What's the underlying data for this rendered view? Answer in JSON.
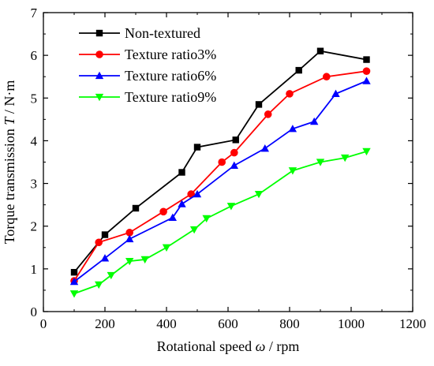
{
  "chart_data": {
    "type": "line",
    "title": "",
    "xlabel_parts": [
      "Rotational speed ",
      "ω",
      " / rpm"
    ],
    "ylabel_parts": [
      "Torque transmission ",
      "T",
      " / N·m"
    ],
    "xlim": [
      0,
      1200
    ],
    "ylim": [
      0,
      7
    ],
    "x_ticks": [
      0,
      200,
      400,
      600,
      800,
      1000,
      1200
    ],
    "y_ticks": [
      0,
      1,
      2,
      3,
      4,
      5,
      6,
      7
    ],
    "grid": false,
    "legend_position": "top-left",
    "series": [
      {
        "name": "Non-textured",
        "color": "#000000",
        "marker": "square",
        "points": [
          [
            100,
            0.92
          ],
          [
            200,
            1.8
          ],
          [
            300,
            2.42
          ],
          [
            450,
            3.26
          ],
          [
            500,
            3.85
          ],
          [
            625,
            4.02
          ],
          [
            700,
            4.85
          ],
          [
            830,
            5.65
          ],
          [
            900,
            6.1
          ],
          [
            1050,
            5.9
          ]
        ]
      },
      {
        "name": "Texture ratio3%",
        "color": "#ff0000",
        "marker": "circle",
        "points": [
          [
            100,
            0.72
          ],
          [
            180,
            1.62
          ],
          [
            280,
            1.85
          ],
          [
            390,
            2.34
          ],
          [
            480,
            2.75
          ],
          [
            580,
            3.5
          ],
          [
            620,
            3.72
          ],
          [
            730,
            4.62
          ],
          [
            800,
            5.1
          ],
          [
            920,
            5.5
          ],
          [
            1050,
            5.63
          ]
        ]
      },
      {
        "name": "Texture ratio6%",
        "color": "#0000ff",
        "marker": "triangle-up",
        "points": [
          [
            100,
            0.7
          ],
          [
            200,
            1.25
          ],
          [
            280,
            1.7
          ],
          [
            420,
            2.2
          ],
          [
            450,
            2.52
          ],
          [
            500,
            2.75
          ],
          [
            620,
            3.42
          ],
          [
            720,
            3.82
          ],
          [
            810,
            4.28
          ],
          [
            880,
            4.45
          ],
          [
            950,
            5.1
          ],
          [
            1050,
            5.4
          ]
        ]
      },
      {
        "name": "Texture ratio9%",
        "color": "#00ff00",
        "marker": "triangle-down",
        "points": [
          [
            100,
            0.42
          ],
          [
            180,
            0.63
          ],
          [
            220,
            0.85
          ],
          [
            280,
            1.18
          ],
          [
            330,
            1.22
          ],
          [
            400,
            1.5
          ],
          [
            490,
            1.92
          ],
          [
            530,
            2.18
          ],
          [
            610,
            2.47
          ],
          [
            700,
            2.75
          ],
          [
            810,
            3.3
          ],
          [
            900,
            3.5
          ],
          [
            980,
            3.6
          ],
          [
            1050,
            3.75
          ]
        ]
      }
    ]
  }
}
